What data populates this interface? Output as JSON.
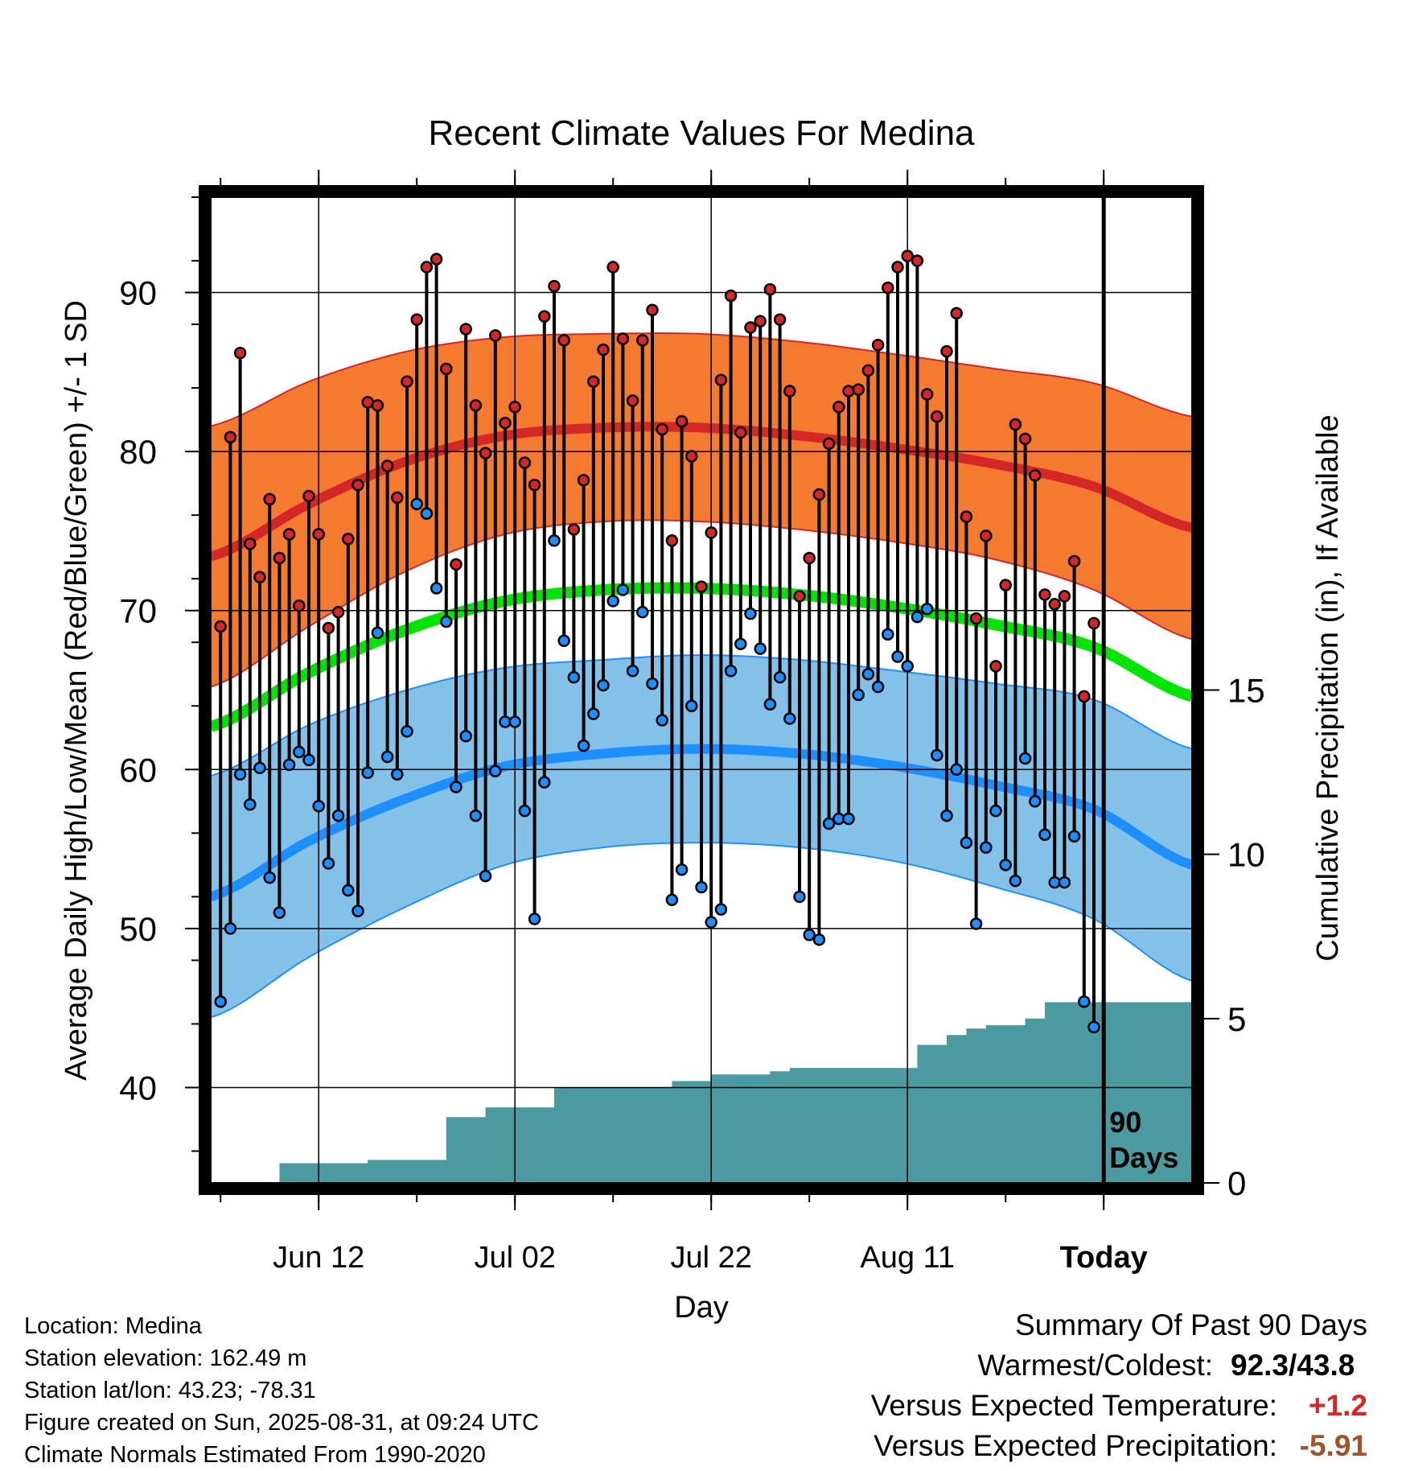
{
  "chart_data": {
    "type": "line",
    "title": "Recent Climate Values For Medina",
    "xlabel": "Day",
    "ylabel": "Average Daily High/Low/Mean (Red/Blue/Green) +/- 1 SD",
    "y2label": "Cumulative Precipitation (in), If Available",
    "xticks": [
      {
        "day": 11,
        "label": "Jun 12"
      },
      {
        "day": 31,
        "label": "Jul 02"
      },
      {
        "day": 51,
        "label": "Jul 22"
      },
      {
        "day": 71,
        "label": "Aug 11"
      },
      {
        "day": 91,
        "label": "Today"
      }
    ],
    "xlim": [
      0,
      100
    ],
    "ylim": [
      34,
      96
    ],
    "yticks": [
      40,
      50,
      60,
      70,
      80,
      90
    ],
    "y2lim": [
      0,
      30
    ],
    "y2ticks": [
      0,
      5,
      10,
      15
    ],
    "today_day": 91,
    "today_marker_label": [
      "90",
      "Days"
    ],
    "grid": true,
    "normals": {
      "days": [
        0,
        10,
        20,
        30,
        40,
        50,
        60,
        70,
        80,
        90,
        100
      ],
      "high_mean": [
        73.4,
        76.7,
        79.4,
        81.0,
        81.5,
        81.5,
        81.0,
        80.2,
        79.2,
        77.8,
        75.2
      ],
      "high_sd": [
        8.2,
        7.7,
        6.9,
        6.2,
        5.9,
        5.9,
        5.9,
        5.9,
        6.0,
        6.5,
        7.0
      ],
      "low_mean": [
        52.0,
        55.5,
        58.2,
        60.2,
        61.0,
        61.3,
        61.0,
        60.2,
        59.0,
        57.5,
        54.0
      ],
      "low_sd": [
        7.6,
        7.3,
        6.8,
        6.2,
        5.9,
        5.9,
        5.9,
        6.0,
        6.4,
        6.9,
        7.3
      ],
      "mean": [
        62.7,
        66.1,
        68.8,
        70.6,
        71.3,
        71.4,
        71.0,
        70.2,
        69.1,
        67.7,
        64.6
      ],
      "colors": {
        "high": "#d62728",
        "high_band": "#f47a30",
        "low": "#1e8fff",
        "low_band": "#84c1e8",
        "mean": "#00e400",
        "precip": "#4a9aa0"
      }
    },
    "series": [
      {
        "name": "High",
        "color": "#d62728",
        "values": [
          69.0,
          80.9,
          86.2,
          74.2,
          72.1,
          77.0,
          73.3,
          74.8,
          70.3,
          77.2,
          74.8,
          68.9,
          69.9,
          74.5,
          77.9,
          83.1,
          82.9,
          79.1,
          77.1,
          84.4,
          88.3,
          91.6,
          92.1,
          85.2,
          72.9,
          87.7,
          82.9,
          79.9,
          87.3,
          81.8,
          82.8,
          79.3,
          77.9,
          88.5,
          90.4,
          87.0,
          75.1,
          78.2,
          84.4,
          86.4,
          91.6,
          87.1,
          83.2,
          87.0,
          88.9,
          81.4,
          74.4,
          81.9,
          79.7,
          71.5,
          74.9,
          84.5,
          89.8,
          81.2,
          87.8,
          88.2,
          90.2,
          88.3,
          83.8,
          70.9,
          73.3,
          77.3,
          80.5,
          82.8,
          83.8,
          83.9,
          85.1,
          86.7,
          90.3,
          91.6,
          92.3,
          92.0,
          83.6,
          82.2,
          86.3,
          88.7,
          75.9,
          69.5,
          74.7,
          66.5,
          71.6,
          81.7,
          80.8,
          78.5,
          71.0,
          70.4,
          70.9,
          73.1,
          64.6,
          69.2
        ]
      },
      {
        "name": "Low",
        "color": "#1e8fff",
        "values": [
          45.4,
          50.0,
          59.7,
          57.8,
          60.1,
          53.2,
          51.0,
          60.3,
          61.1,
          60.6,
          57.7,
          54.1,
          57.1,
          52.4,
          51.1,
          59.8,
          68.6,
          60.8,
          59.7,
          62.4,
          76.7,
          76.1,
          71.4,
          69.3,
          58.9,
          62.1,
          57.1,
          53.3,
          59.9,
          63.0,
          63.0,
          57.4,
          50.6,
          59.2,
          74.4,
          68.1,
          65.8,
          61.5,
          63.5,
          65.3,
          70.6,
          71.3,
          66.2,
          69.9,
          65.4,
          63.1,
          51.8,
          53.7,
          64.0,
          52.6,
          50.4,
          51.2,
          66.2,
          67.9,
          69.8,
          67.6,
          64.1,
          65.8,
          63.2,
          52.0,
          49.6,
          49.3,
          56.6,
          56.9,
          56.9,
          64.7,
          66.0,
          65.2,
          68.5,
          67.1,
          66.5,
          69.6,
          70.1,
          60.9,
          57.1,
          60.0,
          55.4,
          50.3,
          55.1,
          57.4,
          54.0,
          53.0,
          60.7,
          58.0,
          55.9,
          52.9,
          52.9,
          55.8,
          45.4,
          43.8
        ]
      },
      {
        "name": "Cumulative Precipitation",
        "color": "#4a9aa0",
        "days": [
          0,
          7,
          7,
          16,
          16,
          24,
          24,
          28,
          28,
          35,
          35,
          47,
          47,
          51,
          51,
          57,
          57,
          59,
          59,
          72,
          72,
          75,
          75,
          77,
          77,
          79,
          79,
          83,
          83,
          85,
          85,
          87,
          87,
          100
        ],
        "values": [
          0,
          0,
          0.6,
          0.6,
          0.7,
          0.7,
          2.0,
          2.0,
          2.3,
          2.3,
          2.9,
          2.9,
          3.1,
          3.1,
          3.3,
          3.3,
          3.4,
          3.4,
          3.5,
          3.5,
          4.2,
          4.2,
          4.5,
          4.5,
          4.7,
          4.7,
          4.8,
          4.8,
          5.0,
          5.0,
          5.5,
          5.5,
          5.5,
          5.5
        ]
      }
    ]
  },
  "info": {
    "location": "Location: Medina",
    "elevation": "Station elevation: 162.49 m",
    "latlon": "Station lat/lon: 43.23; -78.31",
    "created": "Figure created on Sun, 2025-08-31, at 09:24 UTC",
    "normals_period": "Climate Normals Estimated From 1990-2020"
  },
  "summary": {
    "heading": "Summary Of Past 90 Days",
    "warmest_coldest_label": "Warmest/Coldest:",
    "warmest_coldest_value": "92.3/43.8",
    "temp_label": "Versus Expected Temperature:",
    "temp_value": "+1.2",
    "precip_label": "Versus Expected Precipitation:",
    "precip_value": "-5.91"
  }
}
